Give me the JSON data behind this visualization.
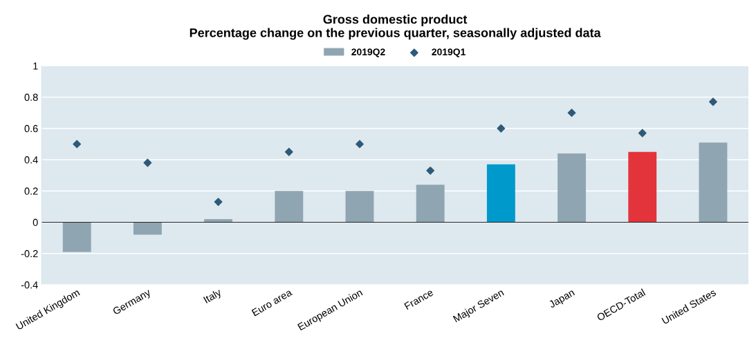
{
  "chart_data": {
    "type": "bar",
    "title": "Gross domestic product\nPercentage change on the previous quarter, seasonally adjusted data",
    "categories": [
      "United Kingdom",
      "Germany",
      "Italy",
      "Euro area",
      "European Union",
      "France",
      "Major Seven",
      "Japan",
      "OECD-Total",
      "United States"
    ],
    "series": [
      {
        "name": "2019Q2",
        "color": "#8fa5b2",
        "colors": [
          "#8fa5b2",
          "#8fa5b2",
          "#8fa5b2",
          "#8fa5b2",
          "#8fa5b2",
          "#8fa5b2",
          "#0099cc",
          "#8fa5b2",
          "#e3343c",
          "#8fa5b2"
        ],
        "values": [
          -0.19,
          -0.08,
          0.02,
          0.2,
          0.2,
          0.24,
          0.37,
          0.44,
          0.45,
          0.51
        ]
      },
      {
        "name": "2019Q1",
        "type": "scatter",
        "color": "#2e5a78",
        "marker": "diamond",
        "values": [
          0.5,
          0.38,
          0.13,
          0.45,
          0.5,
          0.33,
          0.6,
          0.7,
          0.57,
          0.77
        ]
      }
    ],
    "ylim": [
      -0.4,
      1
    ],
    "yticks": [
      -0.4,
      -0.2,
      0,
      0.2,
      0.4,
      0.6,
      0.8,
      1
    ],
    "grid": "y",
    "legend": "top"
  }
}
